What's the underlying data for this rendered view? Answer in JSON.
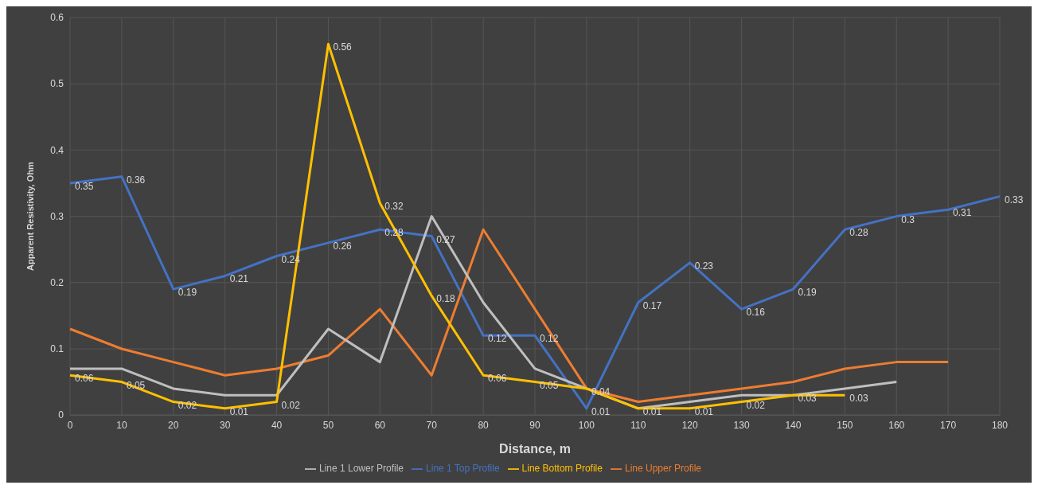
{
  "chart_data": {
    "type": "line",
    "xlabel": "Distance, m",
    "ylabel": "Apparent Resistivity, Ohm",
    "categories": [
      "0",
      "10",
      "20",
      "30",
      "40",
      "50",
      "60",
      "70",
      "80",
      "90",
      "100",
      "110",
      "120",
      "130",
      "140",
      "150",
      "160",
      "170",
      "180"
    ],
    "ylim": [
      0,
      0.6
    ],
    "yticks": [
      0,
      0.1,
      0.2,
      0.3,
      0.4,
      0.5,
      0.6
    ],
    "grid": true,
    "legend": "bottom",
    "marker": "none",
    "line_style": "solid",
    "series": [
      {
        "name": "Line 1 Top Profile",
        "color": "#4472c4",
        "values": [
          0.35,
          0.36,
          0.19,
          0.21,
          0.24,
          0.26,
          0.28,
          0.27,
          0.12,
          0.12,
          0.01,
          0.17,
          0.23,
          0.16,
          0.19,
          0.28,
          0.3,
          0.31,
          0.33
        ],
        "value_labels": [
          "0.35",
          "0.36",
          "0.19",
          "0.21",
          "0.24",
          "0.26",
          "0.28",
          "0.27",
          "0.12",
          "0.12",
          "0.01",
          "0.17",
          "0.23",
          "0.16",
          "0.19",
          "0.28",
          "0.3",
          "0.31",
          "0.33"
        ]
      },
      {
        "name": "Line Upper Profile",
        "color": "#ed7d31",
        "values": [
          0.13,
          0.1,
          0.08,
          0.06,
          0.07,
          0.09,
          0.16,
          0.06,
          0.28,
          0.16,
          0.04,
          0.02,
          0.03,
          0.04,
          0.05,
          0.07,
          0.08,
          0.08,
          null
        ]
      },
      {
        "name": "Line 1 Lower Profile",
        "color": "#bfbfbf",
        "values": [
          0.07,
          0.07,
          0.04,
          0.03,
          0.03,
          0.13,
          0.08,
          0.3,
          0.17,
          0.07,
          0.04,
          0.01,
          0.02,
          0.03,
          0.03,
          0.04,
          0.05,
          null,
          null
        ]
      },
      {
        "name": "Line Bottom Profile",
        "color": "#ffc000",
        "values": [
          0.06,
          0.05,
          0.02,
          0.01,
          0.02,
          0.56,
          0.32,
          0.18,
          0.06,
          0.05,
          0.04,
          0.01,
          0.01,
          0.02,
          0.03,
          0.03,
          null,
          null,
          null
        ],
        "value_labels": [
          "0.06",
          "0.05",
          "0.02",
          "0.01",
          "0.02",
          "0.56",
          "0.32",
          "0.18",
          "0.06",
          "0.05",
          "0.04",
          "0.01",
          "0.01",
          "0.02",
          "0.03",
          "0.03",
          null,
          null,
          null
        ]
      }
    ]
  }
}
